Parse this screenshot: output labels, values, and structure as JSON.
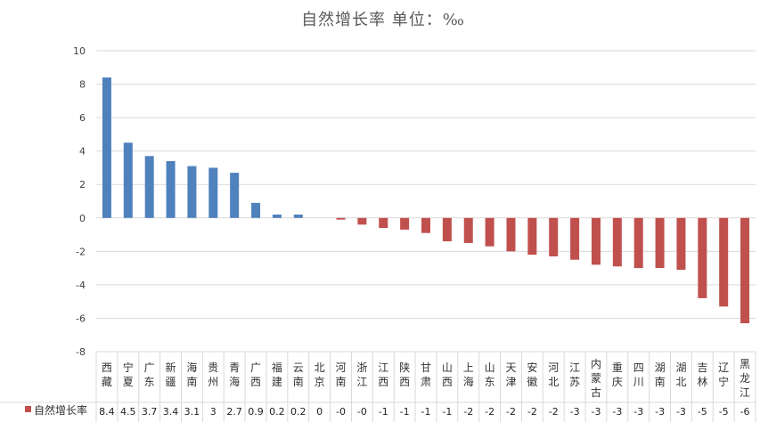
{
  "chart_data": {
    "type": "bar",
    "title": "自然增长率 单位：‰",
    "ylim": [
      -8,
      10
    ],
    "yticks": [
      10,
      8,
      6,
      4,
      2,
      0,
      -2,
      -4,
      -6,
      -8
    ],
    "grid": true,
    "legend_position": "data-table-left",
    "series": [
      {
        "name": "自然增长率",
        "positive_color": "#4F81BD",
        "negative_color": "#C0504D",
        "categories": [
          "西藏",
          "宁夏",
          "广东",
          "新疆",
          "海南",
          "贵州",
          "青海",
          "广西",
          "福建",
          "云南",
          "北京",
          "河南",
          "浙江",
          "江西",
          "陕西",
          "甘肃",
          "山西",
          "上海",
          "山东",
          "天津",
          "安徽",
          "河北",
          "江苏",
          "内蒙古",
          "重庆",
          "四川",
          "湖南",
          "湖北",
          "吉林",
          "辽宁",
          "黑龙江"
        ],
        "values": [
          8.4,
          4.5,
          3.7,
          3.4,
          3.1,
          3.0,
          2.7,
          0.9,
          0.2,
          0.2,
          0.0,
          -0.1,
          -0.4,
          -0.6,
          -0.7,
          -0.9,
          -1.4,
          -1.5,
          -1.7,
          -2.0,
          -2.2,
          -2.3,
          -2.5,
          -2.8,
          -2.9,
          -3.0,
          -3.0,
          -3.1,
          -4.8,
          -5.3,
          -6.3
        ],
        "labels": [
          "8.4",
          "4.5",
          "3.7",
          "3.4",
          "3.1",
          "3",
          "2.7",
          "0.9",
          "0.2",
          "0.2",
          "0",
          "-0",
          "-0",
          "-1",
          "-1",
          "-1",
          "-1",
          "-2",
          "-2",
          "-2",
          "-2",
          "-2",
          "-3",
          "-3",
          "-3",
          "-3",
          "-3",
          "-3",
          "-5",
          "-5",
          "-6"
        ]
      }
    ]
  }
}
